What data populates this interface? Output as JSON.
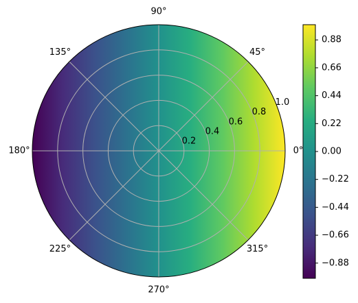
{
  "chart_data": {
    "type": "heatmap",
    "subtype": "polar",
    "title": "",
    "field": "x = r*cos(theta)",
    "r_range": [
      0,
      1.0
    ],
    "theta_range_degrees": [
      0,
      360
    ],
    "angular_ticks": [
      {
        "deg": 0,
        "label": "0°"
      },
      {
        "deg": 45,
        "label": "45°"
      },
      {
        "deg": 90,
        "label": "90°"
      },
      {
        "deg": 135,
        "label": "135°"
      },
      {
        "deg": 180,
        "label": "180°"
      },
      {
        "deg": 225,
        "label": "225°"
      },
      {
        "deg": 270,
        "label": "270°"
      },
      {
        "deg": 315,
        "label": "315°"
      }
    ],
    "radial_ticks": [
      {
        "value": 0.2,
        "label": "0.2"
      },
      {
        "value": 0.4,
        "label": "0.4"
      },
      {
        "value": 0.6,
        "label": "0.6"
      },
      {
        "value": 0.8,
        "label": "0.8"
      },
      {
        "value": 1.0,
        "label": "1.0"
      }
    ],
    "radial_label_angle_deg": 22.5,
    "colormap": "viridis",
    "colorbar": {
      "range": [
        -1.0,
        1.0
      ],
      "ticks": [
        {
          "value": 0.88,
          "label": "0.88"
        },
        {
          "value": 0.66,
          "label": "0.66"
        },
        {
          "value": 0.44,
          "label": "0.44"
        },
        {
          "value": 0.22,
          "label": "0.22"
        },
        {
          "value": 0.0,
          "label": "0.00"
        },
        {
          "value": -0.22,
          "label": "−0.22"
        },
        {
          "value": -0.44,
          "label": "−0.44"
        },
        {
          "value": -0.66,
          "label": "−0.66"
        },
        {
          "value": -0.88,
          "label": "−0.88"
        }
      ]
    },
    "grid": true,
    "grid_color": "#b0b0b0"
  }
}
